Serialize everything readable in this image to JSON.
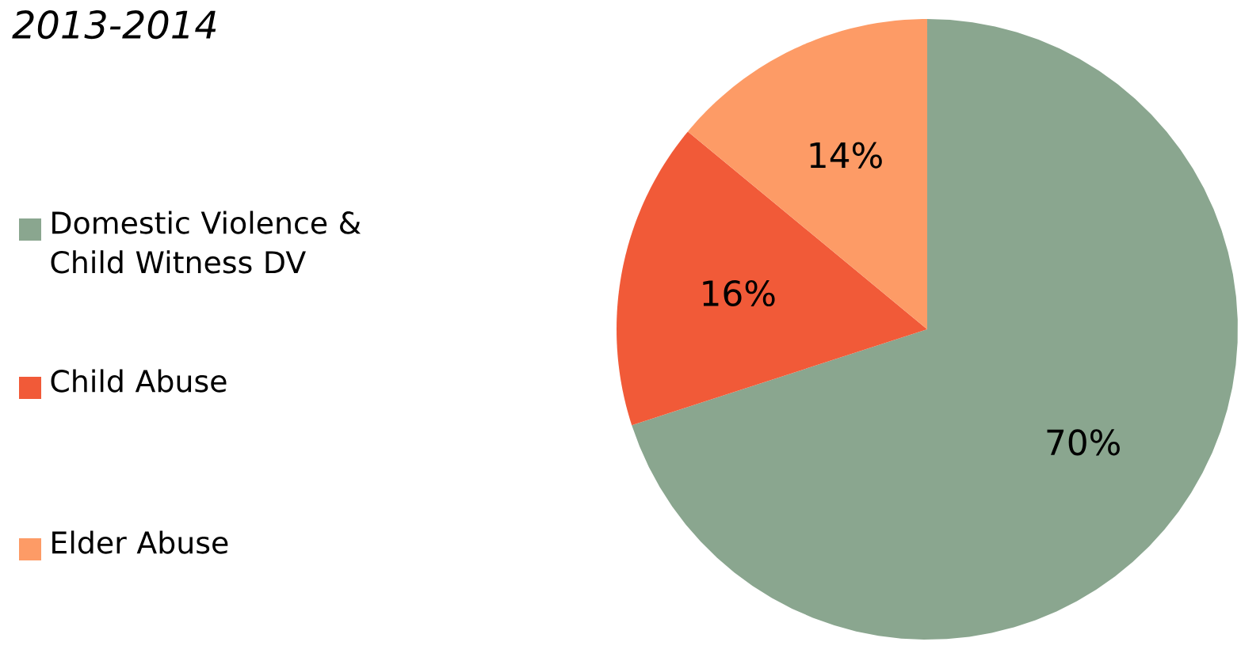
{
  "chart_data": {
    "type": "pie",
    "title": "2013-2014",
    "categories": [
      "Domestic Violence & Child Witness DV",
      "Child Abuse",
      "Elder Abuse"
    ],
    "values": [
      70,
      16,
      14
    ],
    "value_labels": [
      "70%",
      "16%",
      "14%"
    ],
    "colors": [
      "#8aa68f",
      "#f15a38",
      "#fd9b66"
    ],
    "legend": "left"
  }
}
